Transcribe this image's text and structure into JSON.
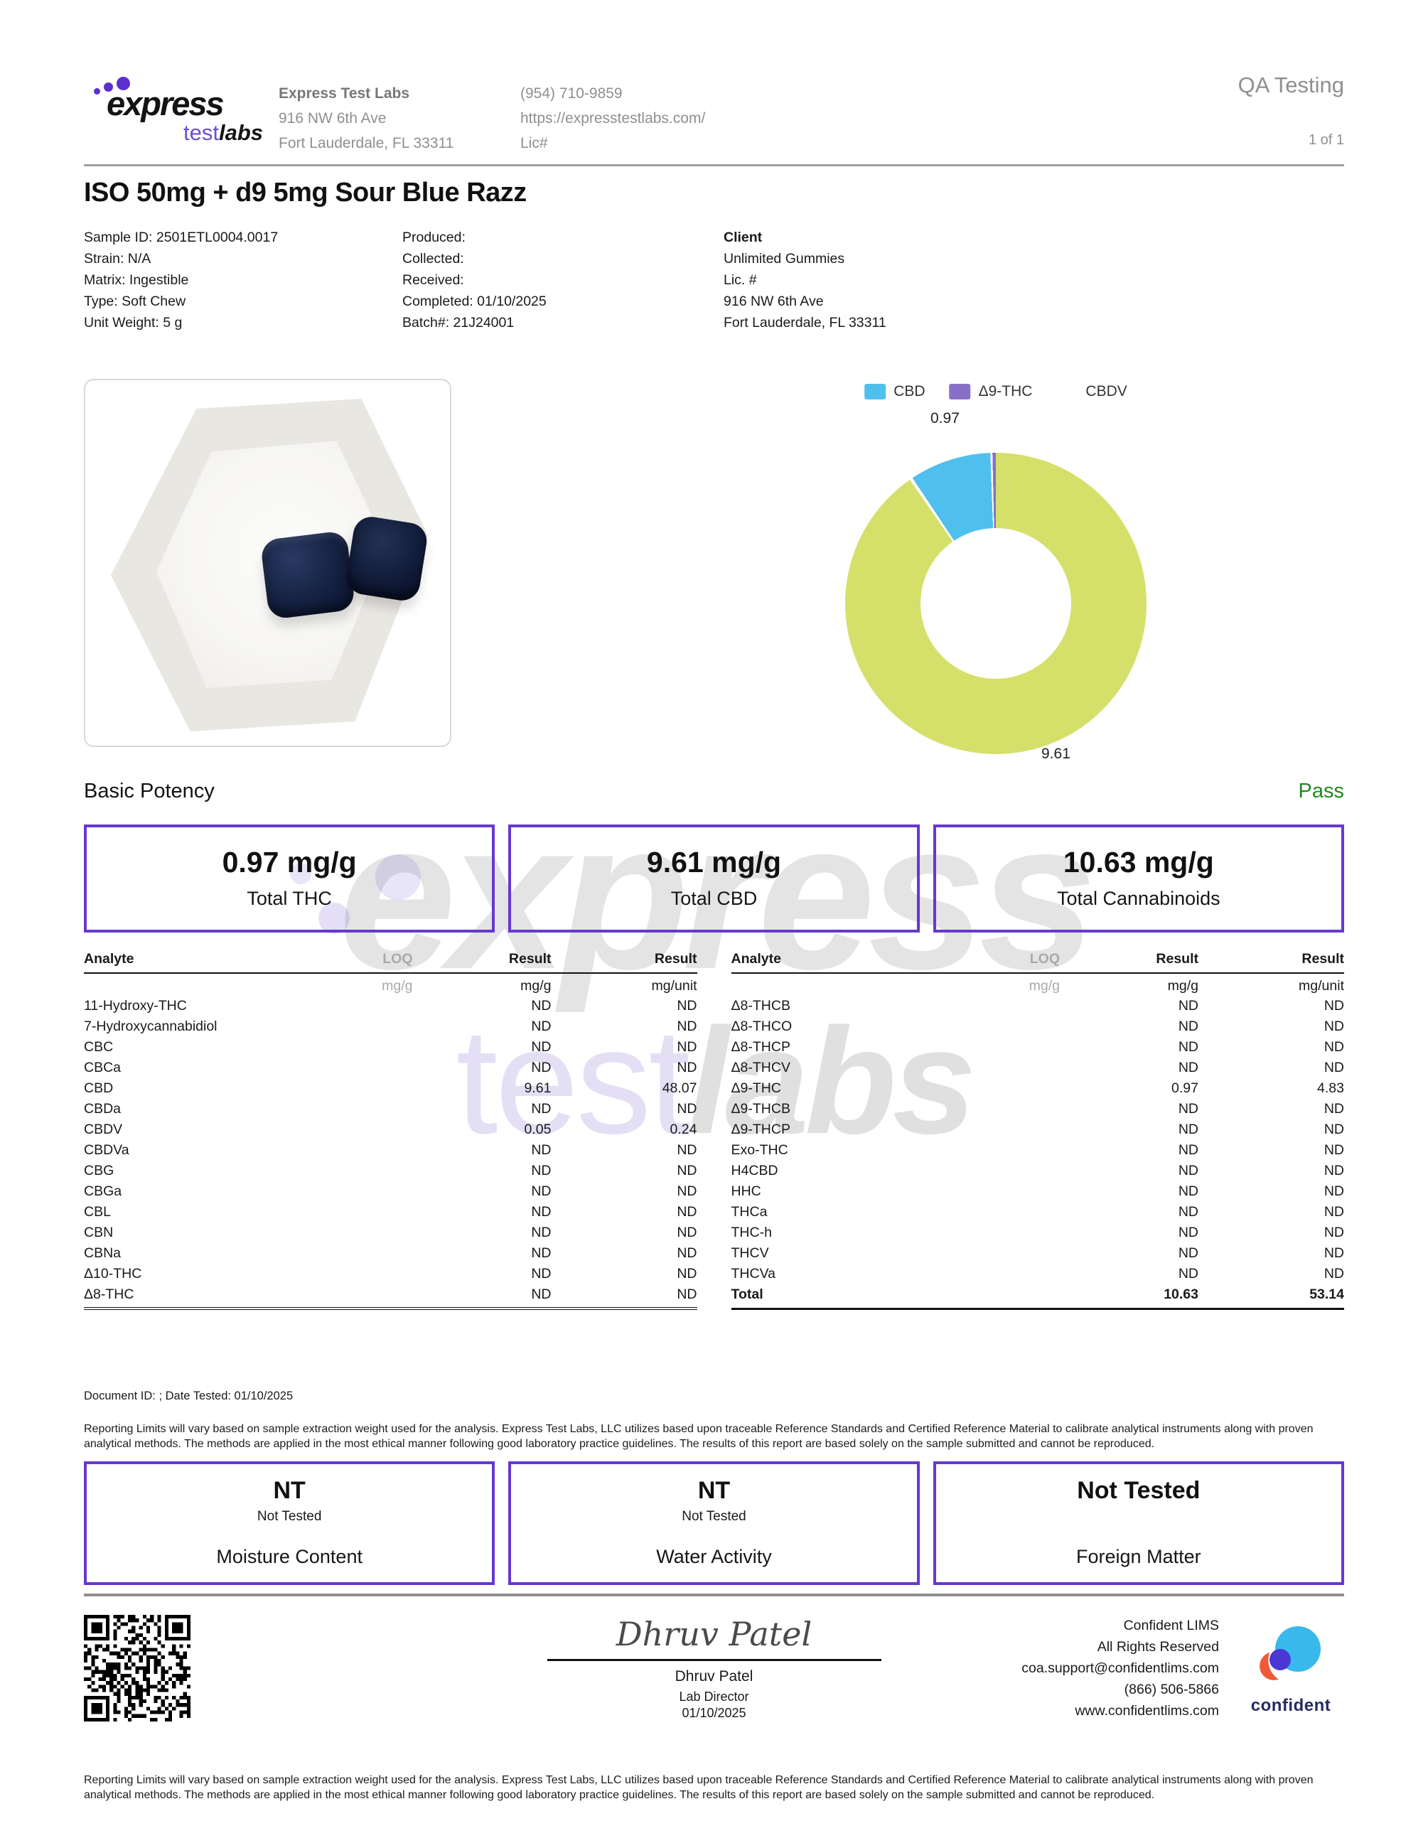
{
  "header": {
    "logo": {
      "word_main": "express",
      "word_test": "test",
      "word_labs": "labs"
    },
    "lab": {
      "name": "Express Test Labs",
      "address1": "916 NW 6th Ave",
      "address2": "Fort Lauderdale, FL 33311"
    },
    "contact": {
      "phone": "(954) 710-9859",
      "website": "https://expresstestlabs.com/",
      "license": "Lic#"
    },
    "qa_label": "QA Testing",
    "page_label": "1 of 1"
  },
  "title": "ISO 50mg + d9 5mg Sour Blue Razz",
  "sample": {
    "col1": [
      "Sample ID: 2501ETL0004.0017",
      "Strain: N/A",
      "Matrix: Ingestible",
      "Type: Soft Chew",
      "Unit Weight: 5 g"
    ],
    "col2": [
      "Produced:",
      "Collected:",
      "Received:",
      "Completed: 01/10/2025",
      "Batch#: 21J24001"
    ],
    "col3": [
      "Client",
      "Unlimited Gummies",
      "Lic. #",
      "916 NW 6th Ave",
      "Fort Lauderdale, FL 33311"
    ]
  },
  "chart_data": {
    "type": "pie",
    "subtype": "donut",
    "units": "mg/g",
    "legend_position": "top",
    "legend": [
      {
        "label": "CBD",
        "color": "#d5e06a"
      },
      {
        "label": "Δ9-THC",
        "color": "#4fc0ee"
      },
      {
        "label": "CBDV",
        "color": "#8a6fc9"
      }
    ],
    "series": [
      {
        "name": "CBD",
        "value": 9.61
      },
      {
        "name": "Δ9-THC",
        "value": 0.97
      },
      {
        "name": "CBDV",
        "value": 0.05
      }
    ],
    "callouts": [
      "0.97",
      "9.61"
    ]
  },
  "potency": {
    "heading": "Basic Potency",
    "status": "Pass",
    "boxes": [
      {
        "value": "0.97 mg/g",
        "label": "Total THC"
      },
      {
        "value": "9.61 mg/g",
        "label": "Total CBD"
      },
      {
        "value": "10.63 mg/g",
        "label": "Total Cannabinoids"
      }
    ]
  },
  "tables": {
    "headers": {
      "analyte": "Analyte",
      "loq": "LOQ",
      "result1": "Result",
      "result2": "Result"
    },
    "units": {
      "loq": "mg/g",
      "result1": "mg/g",
      "result2": "mg/unit"
    },
    "left": {
      "rows": [
        {
          "name": "11-Hydroxy-THC",
          "loq": "",
          "mgg": "ND",
          "mgunit": "ND"
        },
        {
          "name": "7-Hydroxycannabidiol",
          "loq": "",
          "mgg": "ND",
          "mgunit": "ND"
        },
        {
          "name": "CBC",
          "loq": "",
          "mgg": "ND",
          "mgunit": "ND"
        },
        {
          "name": "CBCa",
          "loq": "",
          "mgg": "ND",
          "mgunit": "ND"
        },
        {
          "name": "CBD",
          "loq": "",
          "mgg": "9.61",
          "mgunit": "48.07"
        },
        {
          "name": "CBDa",
          "loq": "",
          "mgg": "ND",
          "mgunit": "ND"
        },
        {
          "name": "CBDV",
          "loq": "",
          "mgg": "0.05",
          "mgunit": "0.24"
        },
        {
          "name": "CBDVa",
          "loq": "",
          "mgg": "ND",
          "mgunit": "ND"
        },
        {
          "name": "CBG",
          "loq": "",
          "mgg": "ND",
          "mgunit": "ND"
        },
        {
          "name": "CBGa",
          "loq": "",
          "mgg": "ND",
          "mgunit": "ND"
        },
        {
          "name": "CBL",
          "loq": "",
          "mgg": "ND",
          "mgunit": "ND"
        },
        {
          "name": "CBN",
          "loq": "",
          "mgg": "ND",
          "mgunit": "ND"
        },
        {
          "name": "CBNa",
          "loq": "",
          "mgg": "ND",
          "mgunit": "ND"
        },
        {
          "name": "Δ10-THC",
          "loq": "",
          "mgg": "ND",
          "mgunit": "ND"
        },
        {
          "name": "Δ8-THC",
          "loq": "",
          "mgg": "ND",
          "mgunit": "ND"
        }
      ]
    },
    "right": {
      "rows": [
        {
          "name": "Δ8-THCB",
          "loq": "",
          "mgg": "ND",
          "mgunit": "ND"
        },
        {
          "name": "Δ8-THCO",
          "loq": "",
          "mgg": "ND",
          "mgunit": "ND"
        },
        {
          "name": "Δ8-THCP",
          "loq": "",
          "mgg": "ND",
          "mgunit": "ND"
        },
        {
          "name": "Δ8-THCV",
          "loq": "",
          "mgg": "ND",
          "mgunit": "ND"
        },
        {
          "name": "Δ9-THC",
          "loq": "",
          "mgg": "0.97",
          "mgunit": "4.83"
        },
        {
          "name": "Δ9-THCB",
          "loq": "",
          "mgg": "ND",
          "mgunit": "ND"
        },
        {
          "name": "Δ9-THCP",
          "loq": "",
          "mgg": "ND",
          "mgunit": "ND"
        },
        {
          "name": "Exo-THC",
          "loq": "",
          "mgg": "ND",
          "mgunit": "ND"
        },
        {
          "name": "H4CBD",
          "loq": "",
          "mgg": "ND",
          "mgunit": "ND"
        },
        {
          "name": "HHC",
          "loq": "",
          "mgg": "ND",
          "mgunit": "ND"
        },
        {
          "name": "THCa",
          "loq": "",
          "mgg": "ND",
          "mgunit": "ND"
        },
        {
          "name": "THC-h",
          "loq": "",
          "mgg": "ND",
          "mgunit": "ND"
        },
        {
          "name": "THCV",
          "loq": "",
          "mgg": "ND",
          "mgunit": "ND"
        },
        {
          "name": "THCVa",
          "loq": "",
          "mgg": "ND",
          "mgunit": "ND"
        },
        {
          "name": "Total",
          "loq": "",
          "mgg": "10.63",
          "mgunit": "53.14"
        }
      ]
    }
  },
  "doc_line": "Document ID: ; Date Tested: 01/10/2025",
  "disclaimer": "Reporting Limits will vary based on sample extraction weight used for the analysis. Express Test Labs, LLC utilizes based upon traceable Reference Standards and Certified Reference Material to calibrate analytical instruments along with proven analytical methods. The methods are applied in the most ethical manner following good laboratory practice guidelines. The results of this report are based solely on the sample submitted and cannot be reproduced.",
  "nt_boxes": [
    {
      "value": "NT",
      "subtitle": "Not Tested",
      "label": "Moisture Content"
    },
    {
      "value": "NT",
      "subtitle": "Not Tested",
      "label": "Water Activity"
    },
    {
      "value": "Not Tested",
      "subtitle": "",
      "label": "Foreign Matter"
    }
  ],
  "footer": {
    "signature_script": "Dhruv Patel",
    "signer": "Dhruv Patel",
    "role": "Lab Director",
    "date": "01/10/2025",
    "lims_lines": [
      "Confident LIMS",
      "All Rights Reserved",
      "coa.support@confidentlims.com",
      "(866) 506-5866",
      "www.confidentlims.com"
    ],
    "logo_text": "confident"
  },
  "watermark": {
    "line1": "express",
    "line2a": "test",
    "line2b": "labs"
  },
  "colors": {
    "accent_purple": "#6638d1",
    "pass_green": "#1e8a1e",
    "cbd": "#d5e06a",
    "d9_thc": "#4fc0ee",
    "cbdv": "#8a6fc9",
    "gray_text": "#8f8f8f"
  }
}
